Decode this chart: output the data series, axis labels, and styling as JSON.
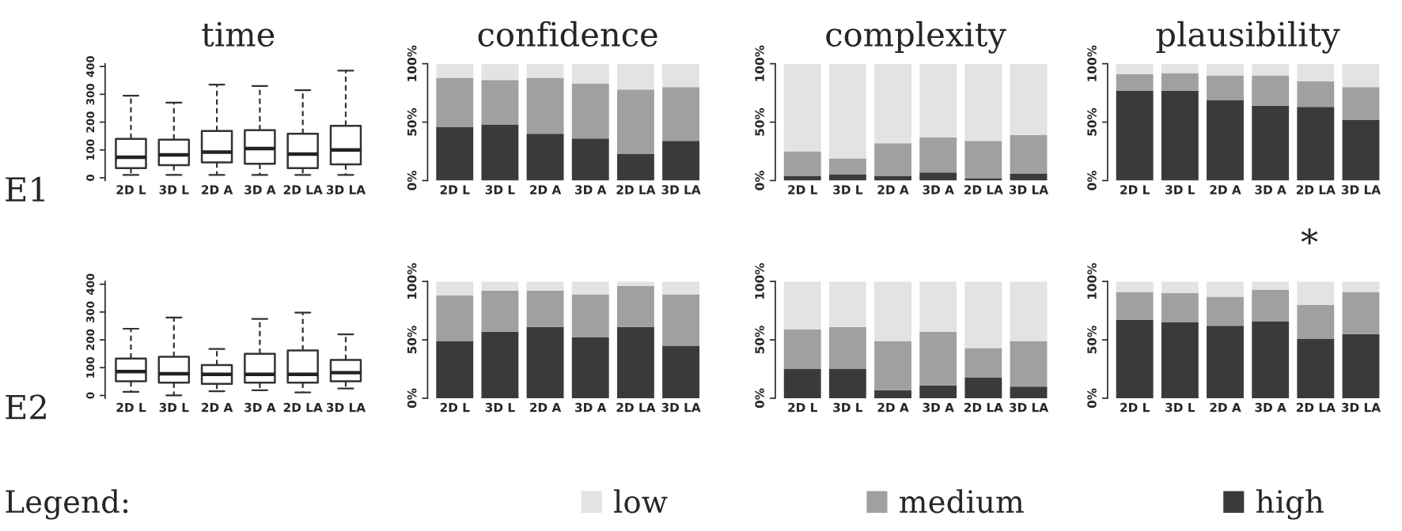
{
  "chart_data": [
    {
      "type": "box",
      "title": "time",
      "categories": [
        "2D L",
        "3D L",
        "2D A",
        "3D A",
        "2D LA",
        "3D LA"
      ],
      "ylim": [
        -10,
        410
      ],
      "yticks": [
        0,
        100,
        200,
        300,
        400
      ],
      "annotations": [
        "E1"
      ],
      "boxes": [
        {
          "low": 10,
          "q1": 35,
          "median": 74,
          "q3": 140,
          "high": 295
        },
        {
          "low": 10,
          "q1": 45,
          "median": 82,
          "q3": 137,
          "high": 270
        },
        {
          "low": 10,
          "q1": 55,
          "median": 92,
          "q3": 168,
          "high": 335
        },
        {
          "low": 10,
          "q1": 50,
          "median": 105,
          "q3": 171,
          "high": 330
        },
        {
          "low": 10,
          "q1": 35,
          "median": 85,
          "q3": 158,
          "high": 315
        },
        {
          "low": 10,
          "q1": 48,
          "median": 100,
          "q3": 187,
          "high": 385
        }
      ]
    },
    {
      "type": "bar",
      "stacked": true,
      "title": "confidence",
      "categories": [
        "2D L",
        "3D L",
        "2D A",
        "3D A",
        "2D LA",
        "3D LA"
      ],
      "ylim": [
        0,
        100
      ],
      "yticks": [
        {
          "value": 0,
          "label": "0%"
        },
        {
          "value": 50,
          "label": "50%"
        },
        {
          "value": 100,
          "label": "100%"
        }
      ],
      "legend": "bottom",
      "legend_title": "Legend:",
      "series": [
        {
          "name": "high",
          "color": "#3a3a3a",
          "values": [
            46,
            48,
            40,
            36,
            23,
            34
          ]
        },
        {
          "name": "medium",
          "color": "#a0a0a0",
          "values": [
            42,
            38,
            48,
            47,
            55,
            46
          ]
        },
        {
          "name": "low",
          "color": "#e3e3e3",
          "values": [
            12,
            14,
            12,
            17,
            22,
            20
          ]
        }
      ]
    },
    {
      "type": "bar",
      "stacked": true,
      "title": "complexity",
      "categories": [
        "2D L",
        "3D L",
        "2D A",
        "3D A",
        "2D LA",
        "3D LA"
      ],
      "ylim": [
        0,
        100
      ],
      "yticks": [
        {
          "value": 0,
          "label": "0%"
        },
        {
          "value": 50,
          "label": "50%"
        },
        {
          "value": 100,
          "label": "100%"
        }
      ],
      "series": [
        {
          "color": "#3a3a3a",
          "values": [
            4,
            5,
            4,
            7,
            2,
            6
          ]
        },
        {
          "color": "#a0a0a0",
          "values": [
            21,
            14,
            28,
            30,
            32,
            33
          ]
        },
        {
          "color": "#e3e3e3",
          "values": [
            75,
            81,
            68,
            63,
            66,
            61
          ]
        }
      ]
    },
    {
      "type": "bar",
      "stacked": true,
      "title": "plausibility",
      "categories": [
        "2D L",
        "3D L",
        "2D A",
        "3D A",
        "2D LA",
        "3D LA"
      ],
      "ylim": [
        0,
        100
      ],
      "yticks": [
        {
          "value": 0,
          "label": "0%"
        },
        {
          "value": 50,
          "label": "50%"
        },
        {
          "value": 100,
          "label": "100%"
        }
      ],
      "annotations": [
        "*"
      ],
      "series": [
        {
          "color": "#3a3a3a",
          "values": [
            77,
            77,
            69,
            64,
            63,
            52
          ]
        },
        {
          "color": "#a0a0a0",
          "values": [
            14,
            15,
            21,
            26,
            22,
            28
          ]
        },
        {
          "color": "#e3e3e3",
          "values": [
            9,
            8,
            10,
            10,
            15,
            20
          ]
        }
      ]
    },
    {
      "type": "box",
      "categories": [
        "2D L",
        "3D L",
        "2D A",
        "3D A",
        "2D LA",
        "3D LA"
      ],
      "ylim": [
        -10,
        410
      ],
      "yticks": [
        0,
        100,
        200,
        300,
        400
      ],
      "annotations": [
        "E2"
      ],
      "boxes": [
        {
          "low": 13,
          "q1": 51,
          "median": 86,
          "q3": 133,
          "high": 240
        },
        {
          "low": 0,
          "q1": 46,
          "median": 78,
          "q3": 139,
          "high": 280
        },
        {
          "low": 15,
          "q1": 42,
          "median": 76,
          "q3": 109,
          "high": 167
        },
        {
          "low": 19,
          "q1": 46,
          "median": 76,
          "q3": 150,
          "high": 275
        },
        {
          "low": 11,
          "q1": 46,
          "median": 76,
          "q3": 162,
          "high": 298
        },
        {
          "low": 25,
          "q1": 51,
          "median": 82,
          "q3": 128,
          "high": 220
        }
      ]
    },
    {
      "type": "bar",
      "stacked": true,
      "categories": [
        "2D L",
        "3D L",
        "2D A",
        "3D A",
        "2D LA",
        "3D LA"
      ],
      "ylim": [
        0,
        100
      ],
      "yticks": [
        {
          "value": 0,
          "label": "0%"
        },
        {
          "value": 50,
          "label": "50%"
        },
        {
          "value": 100,
          "label": "100%"
        }
      ],
      "series": [
        {
          "color": "#3a3a3a",
          "values": [
            49,
            57,
            61,
            52,
            61,
            45
          ]
        },
        {
          "color": "#a0a0a0",
          "values": [
            39,
            35,
            31,
            37,
            35,
            44
          ]
        },
        {
          "color": "#e3e3e3",
          "values": [
            12,
            8,
            8,
            11,
            4,
            11
          ]
        }
      ]
    },
    {
      "type": "bar",
      "stacked": true,
      "categories": [
        "2D L",
        "3D L",
        "2D A",
        "3D A",
        "2D LA",
        "3D LA"
      ],
      "ylim": [
        0,
        100
      ],
      "yticks": [
        {
          "value": 0,
          "label": "0%"
        },
        {
          "value": 50,
          "label": "50%"
        },
        {
          "value": 100,
          "label": "100%"
        }
      ],
      "series": [
        {
          "color": "#3a3a3a",
          "values": [
            25,
            25,
            7,
            11,
            18,
            10
          ]
        },
        {
          "color": "#a0a0a0",
          "values": [
            34,
            36,
            42,
            46,
            25,
            39
          ]
        },
        {
          "color": "#e3e3e3",
          "values": [
            41,
            39,
            51,
            43,
            57,
            51
          ]
        }
      ]
    },
    {
      "type": "bar",
      "stacked": true,
      "categories": [
        "2D L",
        "3D L",
        "2D A",
        "3D A",
        "2D LA",
        "3D LA"
      ],
      "ylim": [
        0,
        100
      ],
      "yticks": [
        {
          "value": 0,
          "label": "0%"
        },
        {
          "value": 50,
          "label": "50%"
        },
        {
          "value": 100,
          "label": "100%"
        }
      ],
      "series": [
        {
          "color": "#3a3a3a",
          "values": [
            67,
            65,
            62,
            66,
            51,
            55
          ]
        },
        {
          "color": "#a0a0a0",
          "values": [
            24,
            25,
            25,
            27,
            29,
            36
          ]
        },
        {
          "color": "#e3e3e3",
          "values": [
            9,
            10,
            13,
            7,
            20,
            9
          ]
        }
      ]
    }
  ]
}
